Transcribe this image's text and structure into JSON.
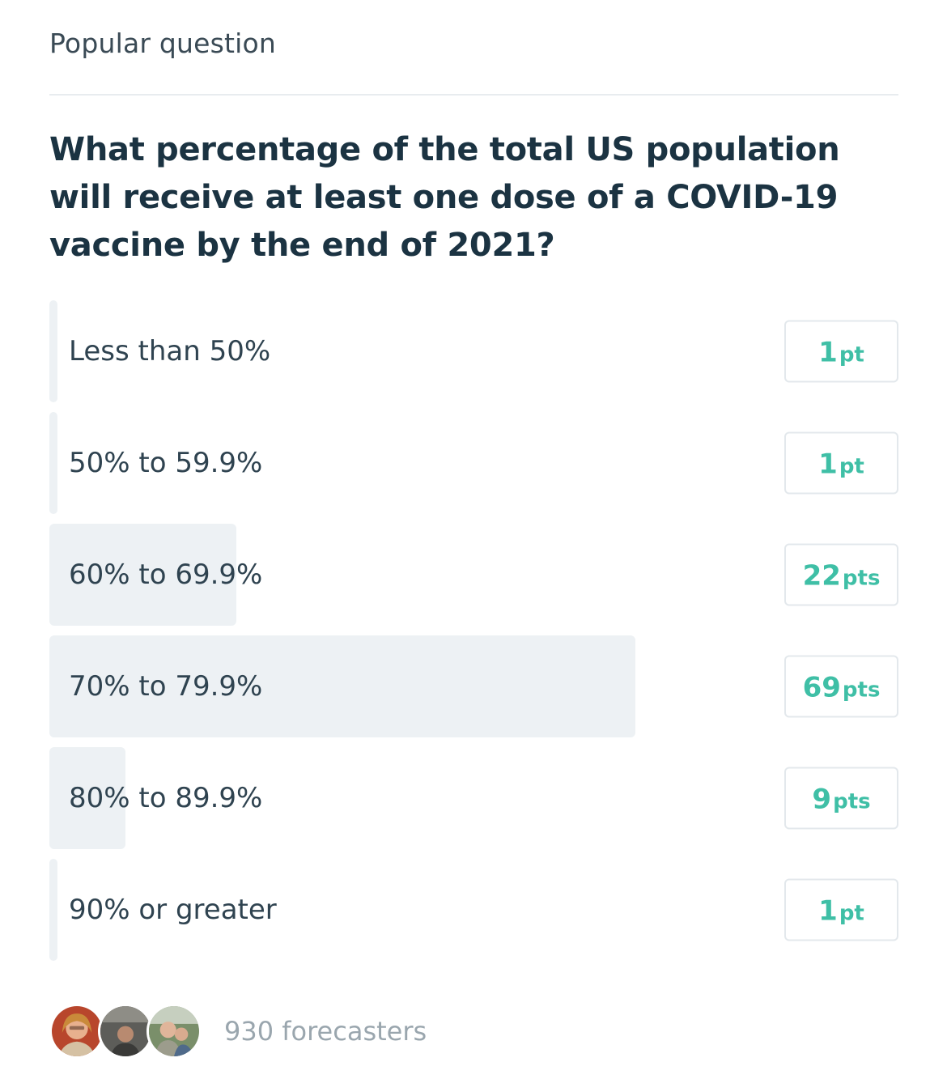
{
  "header": {
    "kicker": "Popular question"
  },
  "question": {
    "title": "What percentage of the total US population will receive at least one dose of a COVID-19 vaccine by the end of 2021?"
  },
  "options": [
    {
      "label": "Less than 50%",
      "points": "1",
      "unit": "pt",
      "share": 1
    },
    {
      "label": "50% to 59.9%",
      "points": "1",
      "unit": "pt",
      "share": 1
    },
    {
      "label": "60% to 69.9%",
      "points": "22",
      "unit": "pts",
      "share": 22
    },
    {
      "label": "70% to 79.9%",
      "points": "69",
      "unit": "pts",
      "share": 69
    },
    {
      "label": "80% to 89.9%",
      "points": "9",
      "unit": "pts",
      "share": 9
    },
    {
      "label": "90% or greater",
      "points": "1",
      "unit": "pt",
      "share": 1
    }
  ],
  "footer": {
    "forecasters": "930 forecasters"
  },
  "colors": {
    "accent": "#3fbfa6",
    "bar": "#edf1f4",
    "title": "#1b3342"
  }
}
